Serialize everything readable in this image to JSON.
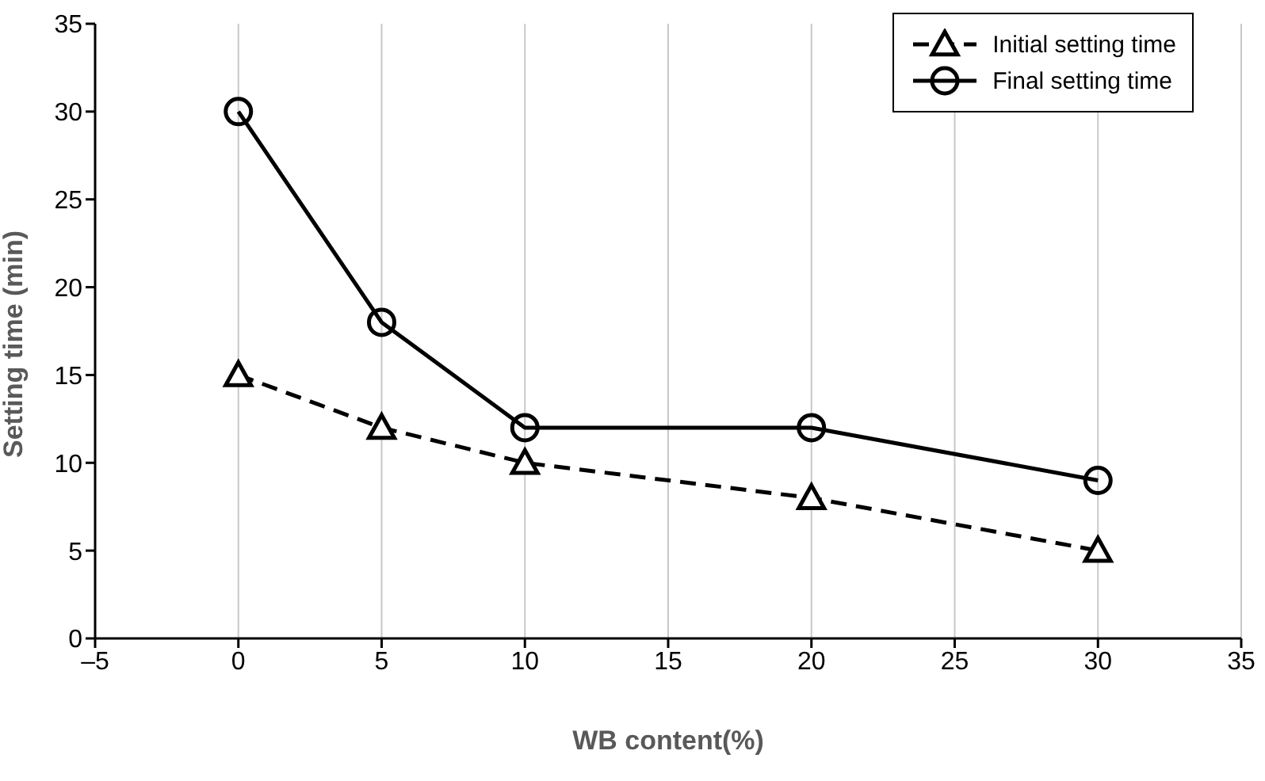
{
  "chart_data": {
    "type": "line",
    "xlabel": "WB content(%)",
    "ylabel": "Setting time  (min)",
    "x": [
      0,
      5,
      10,
      20,
      30
    ],
    "series": [
      {
        "name": "Initial setting time",
        "color": "#000000",
        "values": [
          15,
          12,
          10,
          8,
          5
        ],
        "marker": "triangle",
        "line_style": "dashed"
      },
      {
        "name": "Final setting time",
        "color": "#000000",
        "values": [
          30,
          18,
          12,
          12,
          9
        ],
        "marker": "circle",
        "line_style": "solid"
      }
    ],
    "xlim": [
      -5,
      35
    ],
    "xticks": [
      {
        "value": -5,
        "label": "–5"
      },
      0,
      5,
      10,
      15,
      20,
      25,
      30,
      35
    ],
    "ylim": [
      0,
      35
    ],
    "yticks": [
      0,
      5,
      10,
      15,
      20,
      25,
      30,
      35
    ],
    "grid": "x",
    "legend": "top right"
  }
}
